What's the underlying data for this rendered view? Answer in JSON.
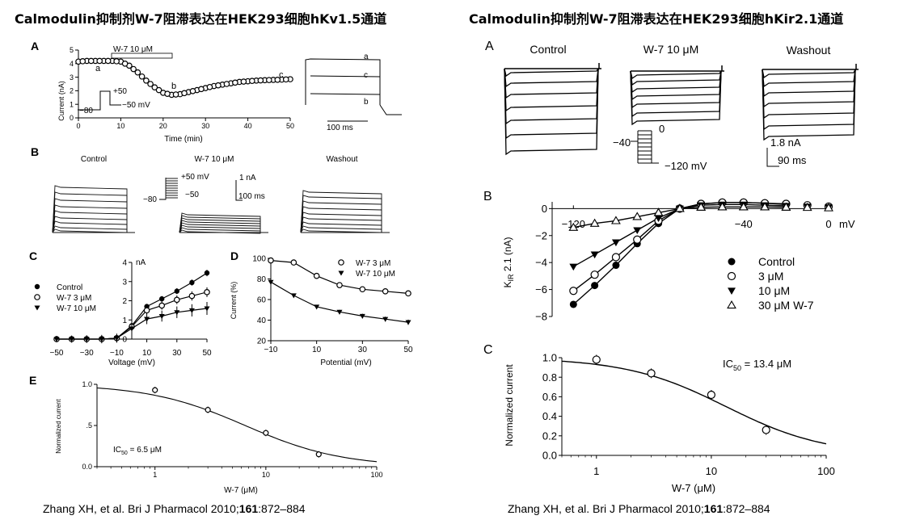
{
  "left": {
    "title": "Calmodulin抑制剂W-7阻滞表达在HEK293细胞hKv1.5通道",
    "citation_pre": "Zhang XH, et al. Bri J Pharmacol 2010;",
    "citation_bold": "161",
    "citation_post": ":872–884",
    "A": {
      "label": "A",
      "ylabel": "Current (nA)",
      "xlabel": "Time (min)",
      "drug_bar": "W-7 10 μM",
      "protocol": [
        "+50",
        "−80",
        "−50 mV"
      ],
      "point_labels": [
        "a",
        "b",
        "c"
      ],
      "scale": "100 ms"
    },
    "B": {
      "label": "B",
      "conditions": [
        "Control",
        "W-7 10 μM",
        "Washout"
      ],
      "protocol": [
        "+50 mV",
        "−50",
        "−80"
      ],
      "scale": [
        "1 nA",
        "100 ms"
      ]
    },
    "C": {
      "label": "C",
      "xlabel": "Voltage (mV)",
      "unit": "nA"
    },
    "D": {
      "label": "D",
      "ylabel": "Current (%)",
      "xlabel": "Potential (mV)"
    },
    "E": {
      "label": "E",
      "ylabel": "Normalized current",
      "xlabel": "W-7 (μM)",
      "ic50_pre": "IC",
      "ic50_sub": "50",
      "ic50_post": " = 6.5 μM"
    }
  },
  "right": {
    "title": "Calmodulin抑制剂W-7阻滞表达在HEK293细胞hKir2.1通道",
    "citation_pre": "Zhang XH, et al. Bri J Pharmacol 2010;",
    "citation_bold": "161",
    "citation_post": ":872–884",
    "A": {
      "label": "A",
      "conditions": [
        "Control",
        "W-7 10 μM",
        "Washout"
      ],
      "protocol": [
        "0",
        "−40",
        "−120 mV"
      ],
      "scale": [
        "1.8 nA",
        "90 ms"
      ]
    },
    "B": {
      "label": "B",
      "ylabel": "K",
      "ylabel_sub": "IR",
      "ylabel_post": " 2.1 (nA)",
      "unit": "mV"
    },
    "C": {
      "label": "C",
      "ylabel": "Normalized current",
      "xlabel": "W-7 (μM)",
      "ic50_pre": "IC",
      "ic50_sub": "50",
      "ic50_post": " = 13.4 μM"
    }
  },
  "chart_data": [
    {
      "id": "left-A",
      "type": "scatter",
      "xlim": [
        0,
        50
      ],
      "ylim": [
        0,
        5
      ],
      "xticks": [
        0,
        10,
        20,
        30,
        40,
        50
      ],
      "yticks": [
        0,
        1,
        2,
        3,
        4,
        5
      ],
      "x": [
        0,
        2,
        4,
        6,
        8,
        10,
        12,
        14,
        16,
        18,
        20,
        22,
        24,
        26,
        28,
        30,
        32,
        34,
        36,
        38,
        40,
        42,
        44,
        46,
        48,
        50
      ],
      "y": [
        4.15,
        4.2,
        4.2,
        4.2,
        4.2,
        4.15,
        3.85,
        3.35,
        2.75,
        2.25,
        1.85,
        1.7,
        1.75,
        1.9,
        2.05,
        2.2,
        2.35,
        2.45,
        2.55,
        2.65,
        2.7,
        2.75,
        2.78,
        2.8,
        2.82,
        2.85
      ]
    },
    {
      "id": "left-C",
      "type": "line",
      "xlim": [
        -50,
        50
      ],
      "ylim": [
        0,
        4
      ],
      "xticks": [
        -50,
        -30,
        -10,
        10,
        30,
        50
      ],
      "yticks": [
        0,
        1,
        2,
        3,
        4
      ],
      "x": [
        -50,
        -40,
        -30,
        -20,
        -10,
        0,
        10,
        20,
        30,
        40,
        50
      ],
      "series": [
        {
          "name": "Control",
          "marker": "filled-circle",
          "values": [
            0,
            0,
            0,
            0,
            0.05,
            0.7,
            1.7,
            2.1,
            2.5,
            2.95,
            3.45
          ]
        },
        {
          "name": "W-7 3 μM",
          "marker": "open-circle",
          "values": [
            0,
            0,
            0,
            0,
            0.05,
            0.65,
            1.5,
            1.75,
            2.05,
            2.25,
            2.45
          ]
        },
        {
          "name": "W-7 10 μM",
          "marker": "filled-triangle",
          "values": [
            0,
            0,
            0,
            0,
            0.05,
            0.55,
            1.05,
            1.2,
            1.4,
            1.5,
            1.6
          ]
        }
      ]
    },
    {
      "id": "left-D",
      "type": "line",
      "xlim": [
        -10,
        50
      ],
      "ylim": [
        20,
        100
      ],
      "xticks": [
        -10,
        10,
        30,
        50
      ],
      "yticks": [
        20,
        40,
        60,
        80,
        100
      ],
      "x": [
        -10,
        0,
        10,
        20,
        30,
        40,
        50
      ],
      "series": [
        {
          "name": "W-7 3 μM",
          "marker": "open-circle",
          "values": [
            98,
            96,
            83,
            74,
            70,
            68,
            66
          ]
        },
        {
          "name": "W-7 10 μM",
          "marker": "filled-triangle",
          "values": [
            77,
            64,
            53,
            48,
            44,
            41,
            38
          ]
        }
      ]
    },
    {
      "id": "left-E",
      "type": "scatter",
      "xscale": "log",
      "xlim": [
        0.3,
        100
      ],
      "ylim": [
        0,
        1
      ],
      "xticks": [
        1,
        10,
        100
      ],
      "yticks": [
        0.0,
        0.5,
        1.0
      ],
      "x": [
        1,
        3,
        10,
        30
      ],
      "y": [
        0.93,
        0.69,
        0.41,
        0.15
      ],
      "fit": {
        "ic50": 6.5
      }
    },
    {
      "id": "right-B",
      "type": "line",
      "xlim": [
        -130,
        0
      ],
      "ylim": [
        -8,
        0.5
      ],
      "xticks": [
        -120,
        -40,
        0
      ],
      "yticks": [
        0,
        -2,
        -4,
        -6,
        -8
      ],
      "x": [
        -120,
        -110,
        -100,
        -90,
        -80,
        -70,
        -60,
        -50,
        -40,
        -30,
        -20,
        -10,
        0
      ],
      "series": [
        {
          "name": "Control",
          "marker": "filled-circle",
          "values": [
            -7.1,
            -5.7,
            -4.2,
            -2.6,
            -1.1,
            0,
            0.35,
            0.45,
            0.45,
            0.4,
            0.3,
            0.2,
            0.15
          ]
        },
        {
          "name": "3 μM",
          "marker": "open-circle",
          "values": [
            -6.1,
            -4.9,
            -3.6,
            -2.3,
            -0.9,
            0,
            0.35,
            0.45,
            0.45,
            0.4,
            0.35,
            0.25,
            0.15
          ]
        },
        {
          "name": "10 μM",
          "marker": "filled-triangle",
          "values": [
            -4.3,
            -3.4,
            -2.5,
            -1.6,
            -0.7,
            0,
            0.25,
            0.3,
            0.3,
            0.25,
            0.2,
            0.15,
            0.1
          ]
        },
        {
          "name": "30 μM W-7",
          "marker": "open-triangle",
          "values": [
            -1.4,
            -1.1,
            -0.9,
            -0.6,
            -0.3,
            0,
            0.1,
            0.12,
            0.12,
            0.12,
            0.1,
            0.08,
            0.05
          ]
        }
      ]
    },
    {
      "id": "right-C",
      "type": "scatter",
      "xscale": "log",
      "xlim": [
        0.5,
        100
      ],
      "ylim": [
        0,
        1
      ],
      "xticks": [
        1,
        10,
        100
      ],
      "yticks": [
        0.0,
        0.2,
        0.4,
        0.6,
        0.8,
        1.0
      ],
      "x": [
        1,
        3,
        10,
        30
      ],
      "y": [
        0.98,
        0.84,
        0.62,
        0.26
      ],
      "fit": {
        "ic50": 13.4
      }
    }
  ]
}
